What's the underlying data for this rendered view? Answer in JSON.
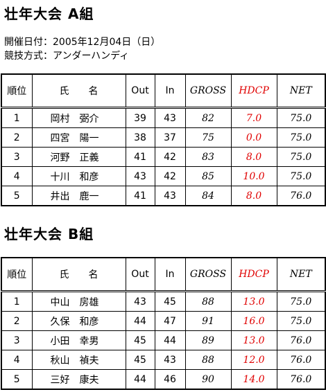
{
  "sections": [
    {
      "title": "壮年大会 A組",
      "info": [
        "開催日付：2005年12月04日（日）",
        "競技方式：アンダーハンディ"
      ],
      "table": {
        "header": [
          "順位",
          "氏　　名",
          "Out",
          "In",
          "GROSS",
          "HDCP",
          "NET"
        ],
        "rows": [
          [
            "1",
            "岡村　弼介",
            "39",
            "43",
            "82",
            "7.0",
            "75.0"
          ],
          [
            "2",
            "四宮　陽一",
            "38",
            "37",
            "75",
            "0.0",
            "75.0"
          ],
          [
            "3",
            "河野　正義",
            "41",
            "42",
            "83",
            "8.0",
            "75.0"
          ],
          [
            "4",
            "十川　和彦",
            "43",
            "42",
            "85",
            "10.0",
            "75.0"
          ],
          [
            "5",
            "井出　鹿一",
            "41",
            "43",
            "84",
            "8.0",
            "76.0"
          ]
        ]
      }
    },
    {
      "title": "壮年大会 B組",
      "table": {
        "header": [
          "順位",
          "氏　　名",
          "Out",
          "In",
          "GROSS",
          "HDCP",
          "NET"
        ],
        "rows": [
          [
            "1",
            "中山　房雄",
            "43",
            "45",
            "88",
            "13.0",
            "75.0"
          ],
          [
            "2",
            "久保　和彦",
            "44",
            "47",
            "91",
            "16.0",
            "75.0"
          ],
          [
            "3",
            "小田　幸男",
            "45",
            "44",
            "89",
            "13.0",
            "76.0"
          ],
          [
            "4",
            "秋山　禎夫",
            "45",
            "43",
            "88",
            "12.0",
            "76.0"
          ],
          [
            "5",
            "三好　康夫",
            "44",
            "46",
            "90",
            "14.0",
            "76.0"
          ]
        ]
      }
    }
  ]
}
